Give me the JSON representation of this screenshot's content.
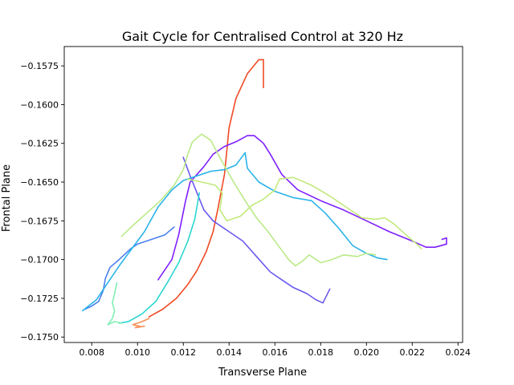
{
  "chart_data": {
    "type": "line",
    "title": "Gait Cycle for Centralised Control at 320 Hz",
    "xlabel": "Transverse Plane",
    "ylabel": "Frontal Plane",
    "xlim": [
      0.0068,
      0.0242
    ],
    "ylim": [
      -0.17535,
      -0.15625
    ],
    "xticks": [
      0.008,
      0.01,
      0.012,
      0.014,
      0.016,
      0.018,
      0.02,
      0.022,
      0.024
    ],
    "xtick_labels": [
      "0.008",
      "0.010",
      "0.012",
      "0.014",
      "0.016",
      "0.018",
      "0.020",
      "0.022",
      "0.024"
    ],
    "yticks": [
      -0.1575,
      -0.16,
      -0.1625,
      -0.165,
      -0.1675,
      -0.17,
      -0.1725,
      -0.175
    ],
    "ytick_labels": [
      "−0.1575",
      "−0.1600",
      "−0.1625",
      "−0.1650",
      "−0.1675",
      "−0.1700",
      "−0.1725",
      "−0.1750"
    ],
    "grid": false,
    "legend": null,
    "series": [
      {
        "color": "#f04a24",
        "points": [
          [
            0.0155,
            -0.1589
          ],
          [
            0.0155,
            -0.1571
          ],
          [
            0.0153,
            -0.1571
          ],
          [
            0.0148,
            -0.158
          ],
          [
            0.0143,
            -0.1596
          ],
          [
            0.014,
            -0.1615
          ],
          [
            0.0138,
            -0.1645
          ],
          [
            0.0135,
            -0.1668
          ],
          [
            0.0133,
            -0.1682
          ],
          [
            0.013,
            -0.1695
          ],
          [
            0.0126,
            -0.1707
          ],
          [
            0.0122,
            -0.1716
          ],
          [
            0.0117,
            -0.1725
          ],
          [
            0.0111,
            -0.1732
          ],
          [
            0.0105,
            -0.1737
          ]
        ]
      },
      {
        "color": "#f7905a",
        "points": [
          [
            0.0105,
            -0.1738
          ],
          [
            0.0102,
            -0.174
          ],
          [
            0.0098,
            -0.1742
          ],
          [
            0.0101,
            -0.1743
          ],
          [
            0.0099,
            -0.1744
          ],
          [
            0.0103,
            -0.1743
          ]
        ]
      },
      {
        "color": "#7f1fff",
        "points": [
          [
            0.0109,
            -0.1713
          ],
          [
            0.0115,
            -0.17
          ],
          [
            0.0118,
            -0.1684
          ],
          [
            0.0121,
            -0.1662
          ],
          [
            0.0123,
            -0.165
          ],
          [
            0.0126,
            -0.1645
          ],
          [
            0.0129,
            -0.164
          ],
          [
            0.0133,
            -0.1632
          ],
          [
            0.0138,
            -0.1627
          ],
          [
            0.0143,
            -0.1624
          ],
          [
            0.0148,
            -0.162
          ],
          [
            0.0151,
            -0.162
          ],
          [
            0.0155,
            -0.1625
          ],
          [
            0.0158,
            -0.1632
          ],
          [
            0.0163,
            -0.1645
          ],
          [
            0.017,
            -0.1655
          ],
          [
            0.018,
            -0.1662
          ],
          [
            0.019,
            -0.1668
          ],
          [
            0.02,
            -0.1675
          ],
          [
            0.021,
            -0.1682
          ],
          [
            0.022,
            -0.1688
          ],
          [
            0.0226,
            -0.1692
          ],
          [
            0.023,
            -0.1692
          ],
          [
            0.0235,
            -0.169
          ],
          [
            0.0235,
            -0.1686
          ],
          [
            0.0233,
            -0.1687
          ]
        ]
      },
      {
        "color": "#6a5af0",
        "points": [
          [
            0.012,
            -0.1634
          ],
          [
            0.0123,
            -0.1646
          ],
          [
            0.0126,
            -0.1657
          ],
          [
            0.0129,
            -0.1668
          ],
          [
            0.0133,
            -0.1675
          ],
          [
            0.014,
            -0.1682
          ],
          [
            0.0146,
            -0.1688
          ],
          [
            0.0152,
            -0.1698
          ],
          [
            0.0158,
            -0.1708
          ],
          [
            0.0163,
            -0.1713
          ],
          [
            0.0168,
            -0.1718
          ],
          [
            0.0174,
            -0.1722
          ],
          [
            0.0178,
            -0.1726
          ],
          [
            0.0181,
            -0.1728
          ],
          [
            0.0184,
            -0.1719
          ]
        ]
      },
      {
        "color": "#4a80f0",
        "points": [
          [
            0.0077,
            -0.1732
          ],
          [
            0.008,
            -0.173
          ],
          [
            0.0083,
            -0.1727
          ],
          [
            0.0085,
            -0.172
          ],
          [
            0.0086,
            -0.1712
          ],
          [
            0.0088,
            -0.1705
          ],
          [
            0.0092,
            -0.17
          ],
          [
            0.0097,
            -0.1693
          ],
          [
            0.01,
            -0.169
          ],
          [
            0.0104,
            -0.1688
          ],
          [
            0.0108,
            -0.1686
          ],
          [
            0.0112,
            -0.1684
          ],
          [
            0.0116,
            -0.1679
          ]
        ]
      },
      {
        "color": "#2ab3ea",
        "points": [
          [
            0.0076,
            -0.1733
          ],
          [
            0.0082,
            -0.1726
          ],
          [
            0.0087,
            -0.1715
          ],
          [
            0.0092,
            -0.1704
          ],
          [
            0.0097,
            -0.1694
          ],
          [
            0.0103,
            -0.1682
          ],
          [
            0.0109,
            -0.1666
          ],
          [
            0.0115,
            -0.1655
          ],
          [
            0.012,
            -0.1649
          ],
          [
            0.0126,
            -0.1646
          ],
          [
            0.0132,
            -0.1643
          ],
          [
            0.0138,
            -0.1642
          ],
          [
            0.0143,
            -0.1639
          ],
          [
            0.0147,
            -0.1631
          ],
          [
            0.0148,
            -0.1641
          ],
          [
            0.0153,
            -0.165
          ],
          [
            0.016,
            -0.1656
          ],
          [
            0.0168,
            -0.166
          ],
          [
            0.0176,
            -0.1662
          ],
          [
            0.0182,
            -0.167
          ],
          [
            0.0188,
            -0.168
          ],
          [
            0.0194,
            -0.1691
          ],
          [
            0.02,
            -0.1696
          ],
          [
            0.0205,
            -0.1699
          ],
          [
            0.0209,
            -0.17
          ]
        ]
      },
      {
        "color": "#2ad6d0",
        "points": [
          [
            0.0127,
            -0.1657
          ],
          [
            0.0125,
            -0.1674
          ],
          [
            0.0122,
            -0.1688
          ],
          [
            0.0118,
            -0.1702
          ],
          [
            0.0113,
            -0.1715
          ],
          [
            0.0108,
            -0.1727
          ],
          [
            0.0102,
            -0.1735
          ],
          [
            0.0096,
            -0.174
          ],
          [
            0.0092,
            -0.1741
          ]
        ]
      },
      {
        "color": "#7fefb4",
        "points": [
          [
            0.0091,
            -0.1715
          ],
          [
            0.009,
            -0.1722
          ],
          [
            0.0089,
            -0.1728
          ],
          [
            0.009,
            -0.1733
          ],
          [
            0.0089,
            -0.1738
          ],
          [
            0.0087,
            -0.1742
          ],
          [
            0.009,
            -0.174
          ],
          [
            0.0093,
            -0.1741
          ]
        ]
      },
      {
        "color": "#b9ea86",
        "points": [
          [
            0.0093,
            -0.1685
          ],
          [
            0.0098,
            -0.1678
          ],
          [
            0.0104,
            -0.167
          ],
          [
            0.011,
            -0.1662
          ],
          [
            0.0116,
            -0.1652
          ],
          [
            0.012,
            -0.1642
          ],
          [
            0.0122,
            -0.1632
          ],
          [
            0.0124,
            -0.1624
          ],
          [
            0.0128,
            -0.1619
          ],
          [
            0.0132,
            -0.1623
          ],
          [
            0.0137,
            -0.1637
          ],
          [
            0.0142,
            -0.165
          ],
          [
            0.0147,
            -0.1662
          ],
          [
            0.0152,
            -0.1673
          ],
          [
            0.0157,
            -0.1682
          ],
          [
            0.0162,
            -0.1692
          ],
          [
            0.0166,
            -0.17
          ],
          [
            0.0169,
            -0.1704
          ],
          [
            0.0172,
            -0.1701
          ],
          [
            0.0175,
            -0.1697
          ],
          [
            0.018,
            -0.1702
          ],
          [
            0.0185,
            -0.17
          ],
          [
            0.019,
            -0.1697
          ],
          [
            0.0196,
            -0.1698
          ],
          [
            0.02,
            -0.1696
          ],
          [
            0.0204,
            -0.1697
          ]
        ]
      },
      {
        "color": "#c2e97a",
        "points": [
          [
            0.0122,
            -0.1648
          ],
          [
            0.0128,
            -0.165
          ],
          [
            0.0134,
            -0.1652
          ],
          [
            0.0137,
            -0.1657
          ],
          [
            0.0136,
            -0.1668
          ],
          [
            0.0139,
            -0.1675
          ],
          [
            0.0145,
            -0.1672
          ],
          [
            0.015,
            -0.1665
          ],
          [
            0.0155,
            -0.1661
          ],
          [
            0.016,
            -0.1655
          ],
          [
            0.0162,
            -0.1648
          ],
          [
            0.0168,
            -0.1647
          ],
          [
            0.0176,
            -0.1652
          ],
          [
            0.0184,
            -0.1659
          ],
          [
            0.0192,
            -0.1667
          ],
          [
            0.0198,
            -0.1673
          ],
          [
            0.0204,
            -0.1674
          ],
          [
            0.0208,
            -0.1673
          ],
          [
            0.0212,
            -0.1677
          ],
          [
            0.0218,
            -0.1685
          ],
          [
            0.0222,
            -0.169
          ],
          [
            0.0224,
            -0.1693
          ]
        ]
      }
    ]
  }
}
